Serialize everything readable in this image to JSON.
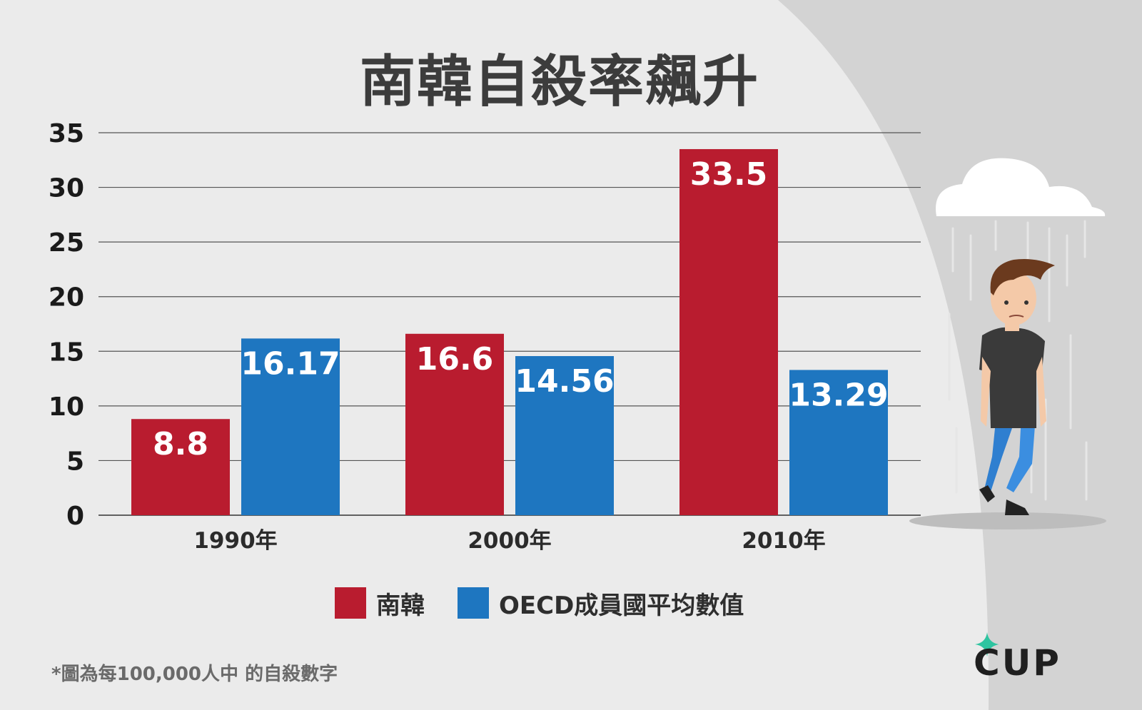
{
  "brand": "CUP",
  "footnote": "*圖為每100,000人中 的自殺數字",
  "chart_data": {
    "type": "bar",
    "title": "南韓自殺率飆升",
    "categories": [
      "1990年",
      "2000年",
      "2010年"
    ],
    "series": [
      {
        "name": "南韓",
        "values": [
          8.8,
          16.6,
          33.5
        ],
        "labels": [
          "8.8",
          "16.6",
          "33.5"
        ],
        "color": "#b91c2f"
      },
      {
        "name": "OECD成員國平均數值",
        "values": [
          16.17,
          14.56,
          13.29
        ],
        "labels": [
          "16.17",
          "14.56",
          "13.29"
        ],
        "color": "#1e76c0"
      }
    ],
    "yticks": [
      "0",
      "5",
      "10",
      "15",
      "20",
      "25",
      "30",
      "35"
    ],
    "ylim": [
      0,
      35
    ],
    "grid": true,
    "legend_position": "bottom"
  }
}
